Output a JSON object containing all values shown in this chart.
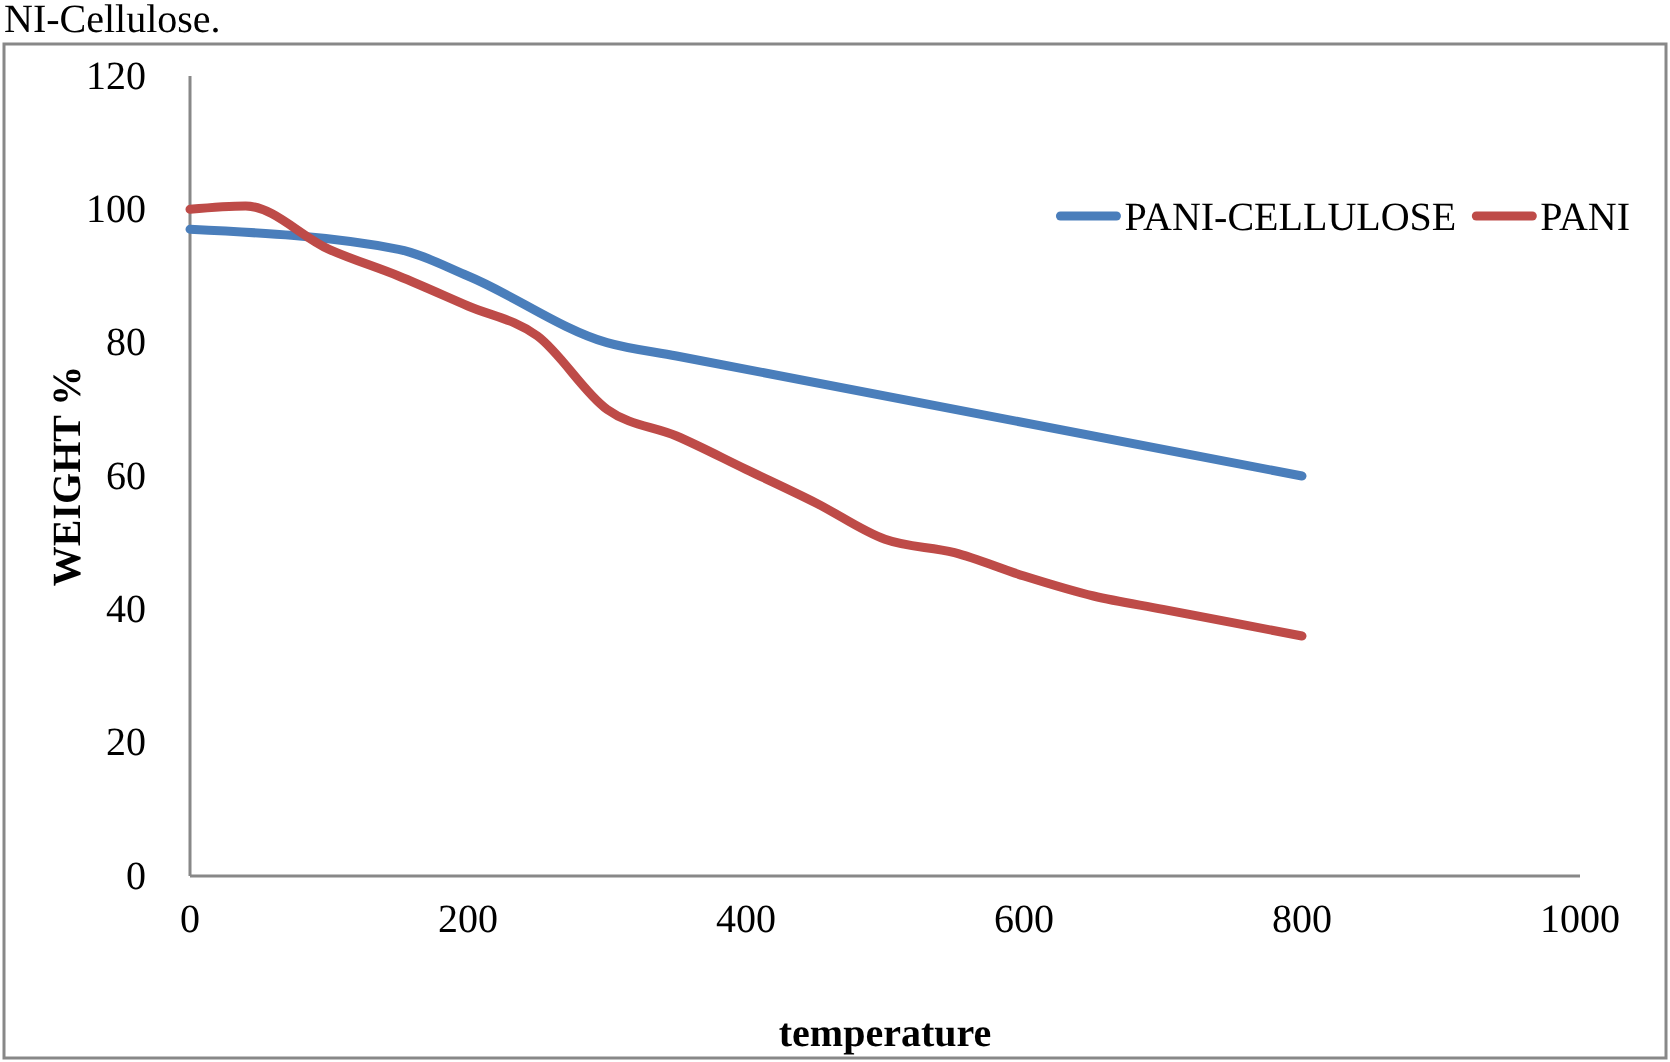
{
  "chart_data": {
    "type": "line",
    "xlabel": "temperature",
    "ylabel": "WEIGHT %",
    "annotations": [
      "NI-Cellulose."
    ],
    "xlim": [
      0,
      1000
    ],
    "xticks": [
      0,
      200,
      400,
      600,
      800,
      1000
    ],
    "ylim": [
      0,
      120
    ],
    "yticks": [
      0,
      20,
      40,
      60,
      80,
      100,
      120
    ],
    "grid": false,
    "legend": "top right",
    "line_style": "solid",
    "marker": "none",
    "series": [
      {
        "name": "PANI-CELLULOSE",
        "color": "#4a7ebb",
        "x": [
          0,
          150,
          200,
          300,
          350,
          800
        ],
        "values": [
          97,
          94,
          90,
          80,
          78,
          60
        ]
      },
      {
        "name": "PANI",
        "color": "#be4b48",
        "x": [
          0,
          40,
          100,
          150,
          200,
          250,
          300,
          350,
          400,
          450,
          500,
          550,
          600,
          650,
          700,
          800
        ],
        "values": [
          100,
          100.5,
          94,
          90,
          85.5,
          81,
          70,
          66,
          61,
          56,
          50.5,
          48.5,
          45,
          42,
          40,
          36
        ]
      }
    ]
  }
}
